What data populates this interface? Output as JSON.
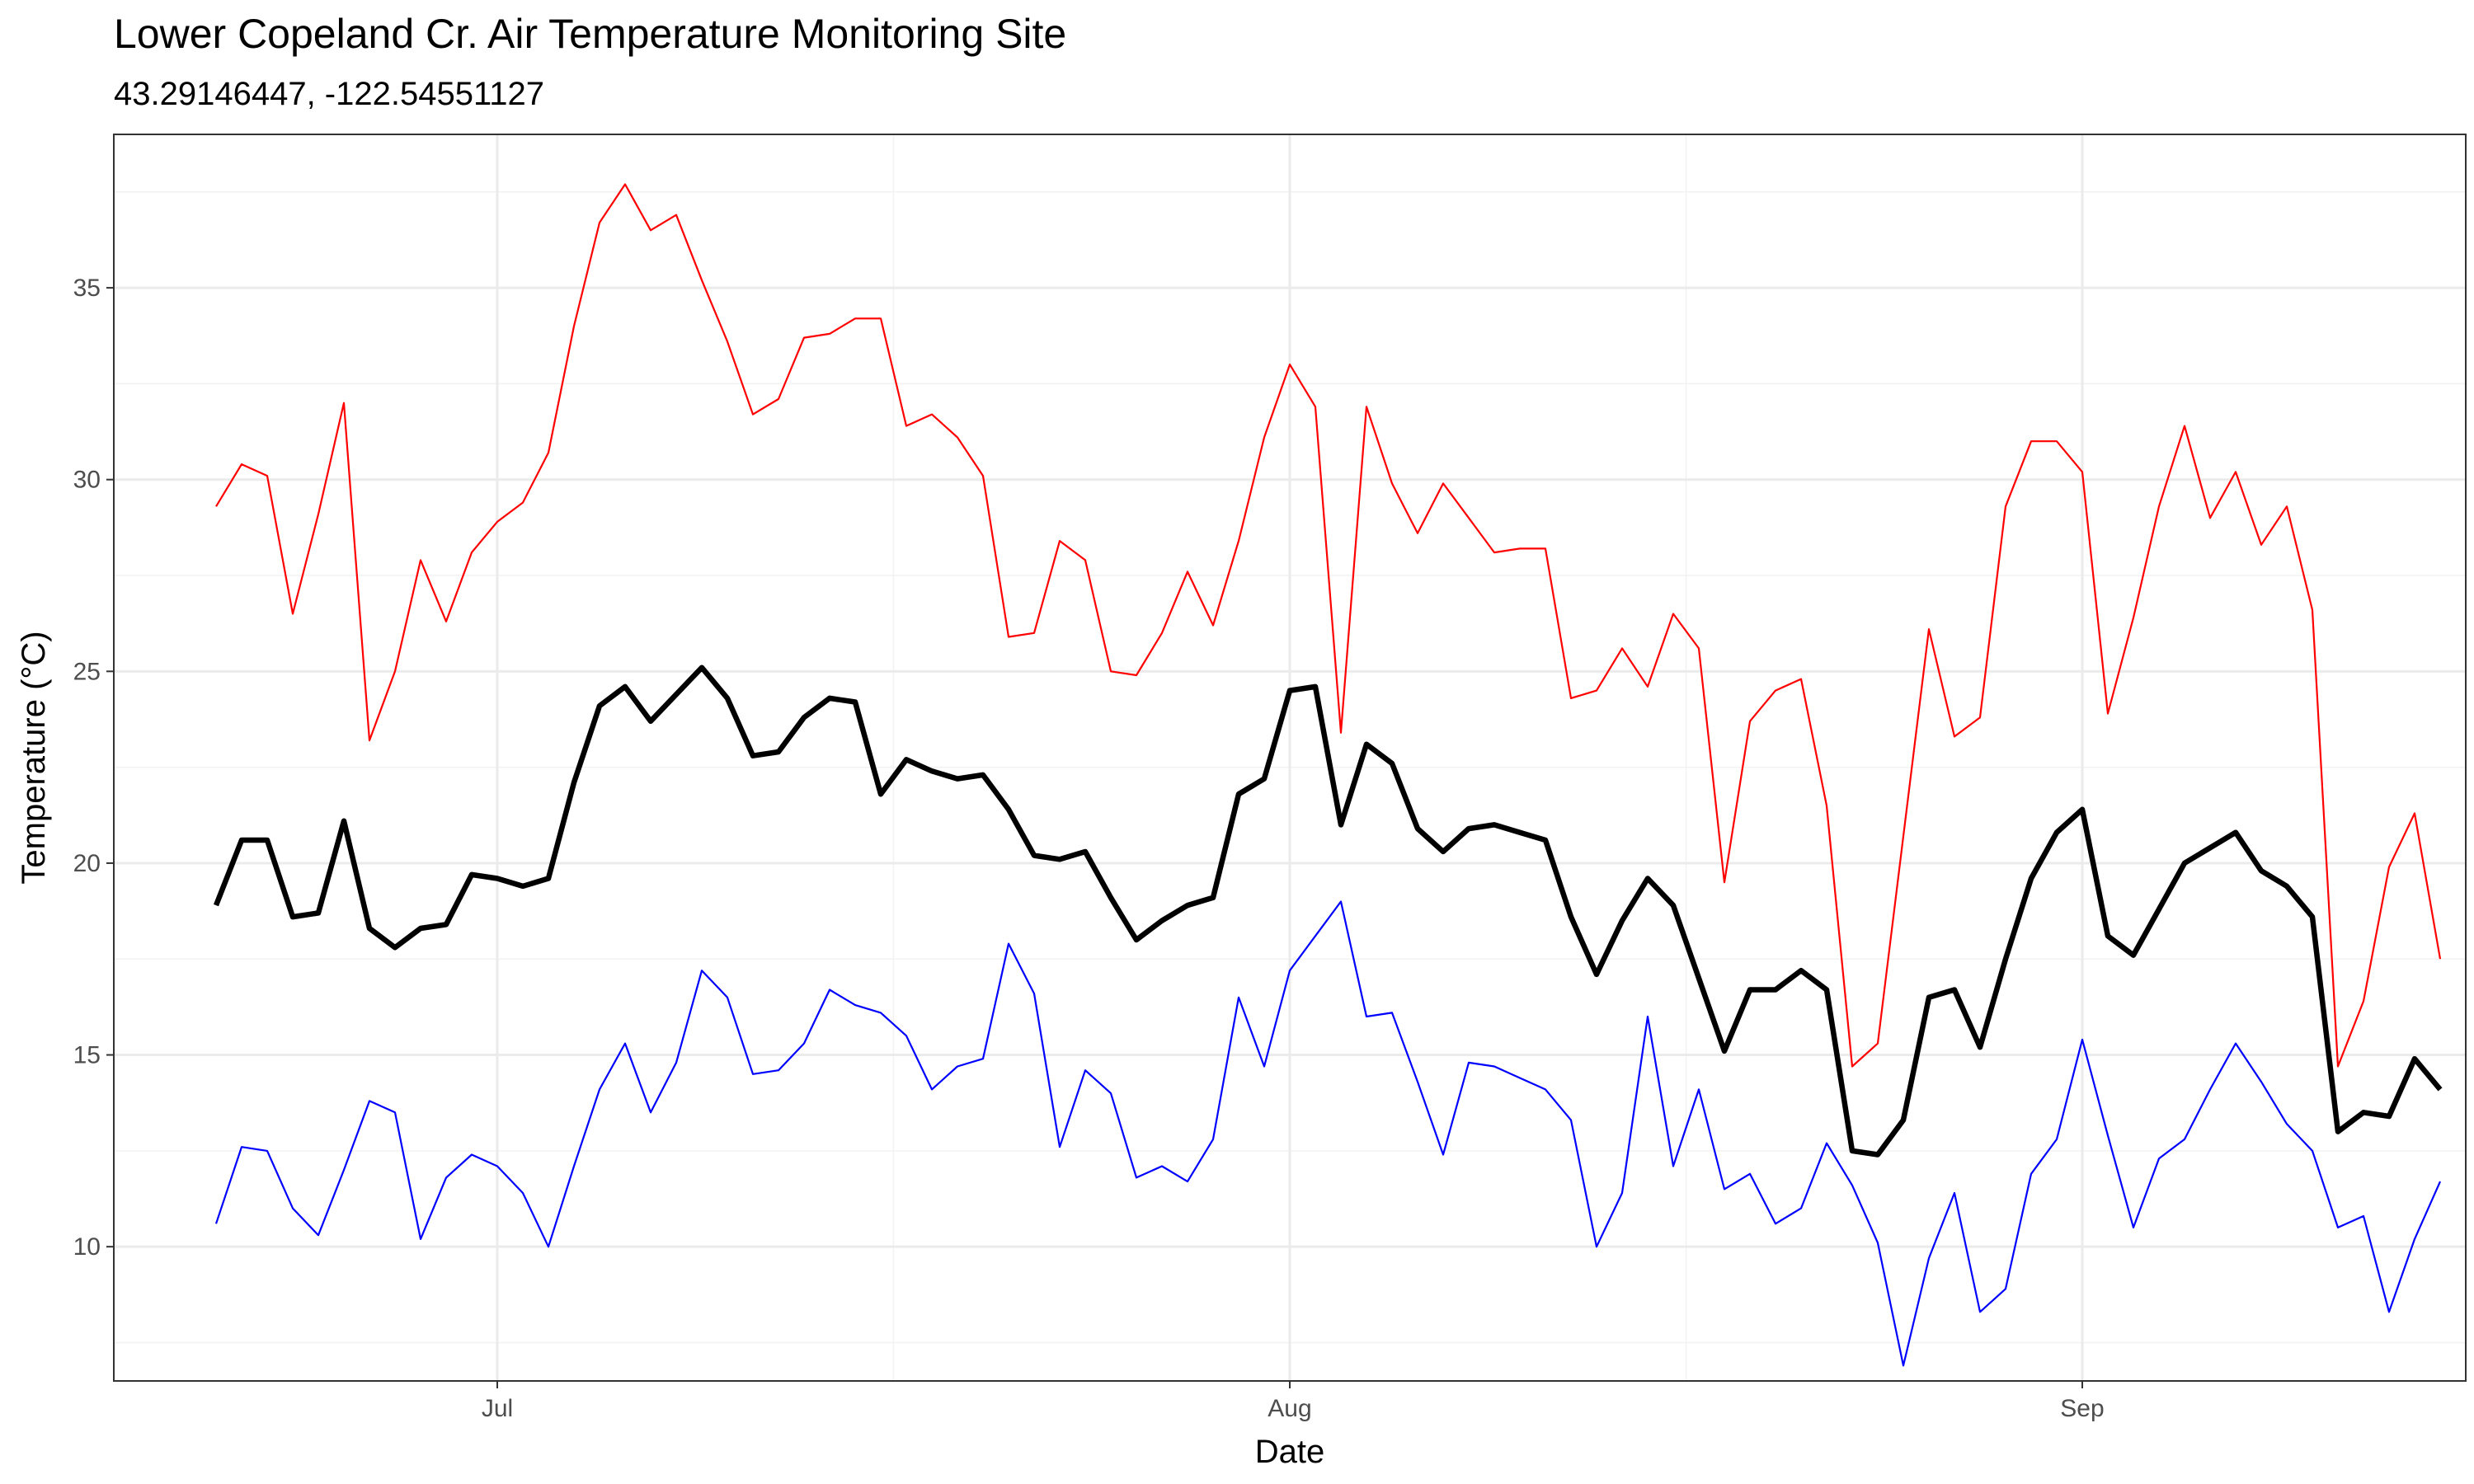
{
  "chart_data": {
    "type": "line",
    "title": "Lower Copeland Cr. Air Temperature Monitoring Site",
    "subtitle": "43.29146447, -122.54551127",
    "xlabel": "Date",
    "ylabel": "Temperature (°C)",
    "x_tick_labels": [
      "Jul",
      "Aug",
      "Sep"
    ],
    "y_tick_labels": [
      "10",
      "15",
      "20",
      "25",
      "30",
      "35"
    ],
    "xlim": [
      "2020-06-16",
      "2020-09-16"
    ],
    "ylim": [
      6.5,
      39
    ],
    "grid": true,
    "x": [
      "2020-06-20",
      "2020-06-21",
      "2020-06-22",
      "2020-06-23",
      "2020-06-24",
      "2020-06-25",
      "2020-06-26",
      "2020-06-27",
      "2020-06-28",
      "2020-06-29",
      "2020-06-30",
      "2020-07-01",
      "2020-07-02",
      "2020-07-03",
      "2020-07-04",
      "2020-07-05",
      "2020-07-06",
      "2020-07-07",
      "2020-07-08",
      "2020-07-09",
      "2020-07-10",
      "2020-07-11",
      "2020-07-12",
      "2020-07-13",
      "2020-07-14",
      "2020-07-15",
      "2020-07-16",
      "2020-07-17",
      "2020-07-18",
      "2020-07-19",
      "2020-07-20",
      "2020-07-21",
      "2020-07-22",
      "2020-07-23",
      "2020-07-24",
      "2020-07-25",
      "2020-07-26",
      "2020-07-27",
      "2020-07-28",
      "2020-07-29",
      "2020-07-30",
      "2020-07-31",
      "2020-08-01",
      "2020-08-02",
      "2020-08-03",
      "2020-08-04",
      "2020-08-05",
      "2020-08-06",
      "2020-08-07",
      "2020-08-08",
      "2020-08-09",
      "2020-08-10",
      "2020-08-11",
      "2020-08-12",
      "2020-08-13",
      "2020-08-14",
      "2020-08-15",
      "2020-08-16",
      "2020-08-17",
      "2020-08-18",
      "2020-08-19",
      "2020-08-20",
      "2020-08-21",
      "2020-08-22",
      "2020-08-23",
      "2020-08-24",
      "2020-08-25",
      "2020-08-26",
      "2020-08-27",
      "2020-08-28",
      "2020-08-29",
      "2020-08-30",
      "2020-08-31",
      "2020-09-01",
      "2020-09-02",
      "2020-09-03",
      "2020-09-04",
      "2020-09-05",
      "2020-09-06",
      "2020-09-07",
      "2020-09-08",
      "2020-09-09",
      "2020-09-10",
      "2020-09-11",
      "2020-09-12",
      "2020-09-13",
      "2020-09-14",
      "2020-09-15"
    ],
    "series": [
      {
        "color": "#ff0000",
        "values": [
          29.3,
          30.4,
          30.1,
          26.5,
          29.1,
          32.0,
          23.2,
          25.0,
          27.9,
          26.3,
          28.1,
          28.9,
          29.4,
          30.7,
          34.0,
          36.7,
          37.7,
          36.5,
          36.9,
          35.2,
          33.6,
          31.7,
          32.1,
          33.7,
          33.8,
          34.2,
          34.2,
          31.4,
          31.7,
          31.1,
          30.1,
          25.9,
          26.0,
          28.4,
          27.9,
          25.0,
          24.9,
          26.0,
          27.6,
          26.2,
          28.4,
          31.1,
          33.0,
          31.9,
          23.4,
          31.9,
          29.9,
          28.6,
          29.9,
          29.0,
          28.1,
          28.2,
          28.2,
          24.3,
          24.5,
          25.6,
          24.6,
          26.5,
          25.6,
          19.5,
          23.7,
          24.5,
          24.8,
          21.5,
          14.7,
          15.3,
          20.7,
          26.1,
          23.3,
          23.8,
          29.3,
          31.0,
          31.0,
          30.2,
          23.9,
          26.4,
          29.3,
          31.4,
          29.0,
          30.2,
          28.3,
          29.3,
          26.6,
          14.7,
          16.4,
          19.9,
          21.3,
          17.5
        ]
      },
      {
        "color": "#000000",
        "values": [
          18.9,
          20.6,
          20.6,
          18.6,
          18.7,
          21.1,
          18.3,
          17.8,
          18.3,
          18.4,
          19.7,
          19.6,
          19.4,
          19.6,
          22.1,
          24.1,
          24.6,
          23.7,
          24.4,
          25.1,
          24.3,
          22.8,
          22.9,
          23.8,
          24.3,
          24.2,
          21.8,
          22.7,
          22.4,
          22.2,
          22.3,
          21.4,
          20.2,
          20.1,
          20.3,
          19.1,
          18.0,
          18.5,
          18.9,
          19.1,
          21.8,
          22.2,
          24.5,
          24.6,
          21.0,
          23.1,
          22.6,
          20.9,
          20.3,
          20.9,
          21.0,
          20.8,
          20.6,
          18.6,
          17.1,
          18.5,
          19.6,
          18.9,
          17.0,
          15.1,
          16.7,
          16.7,
          17.2,
          16.7,
          12.5,
          12.4,
          13.3,
          16.5,
          16.7,
          15.2,
          17.5,
          19.6,
          20.8,
          21.4,
          18.1,
          17.6,
          18.8,
          20.0,
          20.4,
          20.8,
          19.8,
          19.4,
          18.6,
          13.0,
          13.5,
          13.4,
          14.9,
          14.1
        ]
      },
      {
        "color": "#0000ff",
        "values": [
          10.6,
          12.6,
          12.5,
          11.0,
          10.3,
          12.0,
          13.8,
          13.5,
          10.2,
          11.8,
          12.4,
          12.1,
          11.4,
          10.0,
          12.1,
          14.1,
          15.3,
          13.5,
          14.8,
          17.2,
          16.5,
          14.5,
          14.6,
          15.3,
          16.7,
          16.3,
          16.1,
          15.5,
          14.1,
          14.7,
          14.9,
          17.9,
          16.6,
          12.6,
          14.6,
          14.0,
          11.8,
          12.1,
          11.7,
          12.8,
          16.5,
          14.7,
          17.2,
          18.1,
          19.0,
          16.0,
          16.1,
          14.3,
          12.4,
          14.8,
          14.7,
          14.4,
          14.1,
          13.3,
          10.0,
          11.4,
          16.0,
          12.1,
          14.1,
          11.5,
          11.9,
          10.6,
          11.0,
          12.7,
          11.6,
          10.1,
          6.9,
          9.7,
          11.4,
          8.3,
          8.9,
          11.9,
          12.8,
          15.4,
          12.9,
          10.5,
          12.3,
          12.8,
          14.1,
          15.3,
          14.3,
          13.2,
          12.5,
          10.5,
          10.8,
          8.3,
          10.2,
          11.7
        ]
      }
    ]
  }
}
